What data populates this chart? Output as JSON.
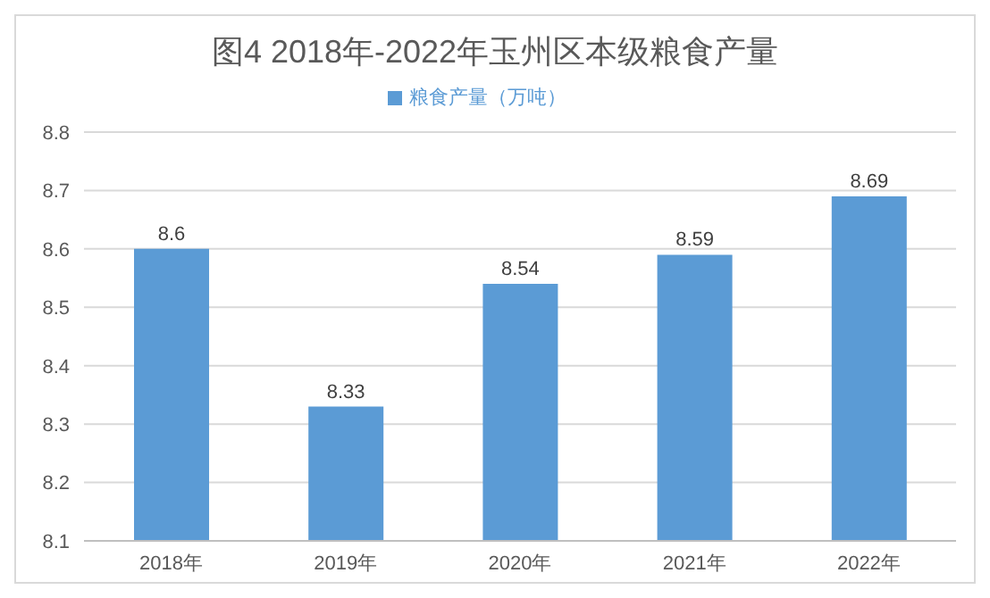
{
  "chart_data": {
    "type": "bar",
    "title": "图4 2018年-2022年玉州区本级粮食产量",
    "categories": [
      "2018年",
      "2019年",
      "2020年",
      "2021年",
      "2022年"
    ],
    "series": [
      {
        "name": "粮食产量（万吨）",
        "color": "#5b9bd5",
        "values": [
          8.6,
          8.33,
          8.54,
          8.59,
          8.69
        ]
      }
    ],
    "ylim": [
      8.1,
      8.8
    ],
    "yticks": [
      8.1,
      8.2,
      8.3,
      8.4,
      8.5,
      8.6,
      8.7,
      8.8
    ],
    "grid": "y",
    "legend": "top",
    "data_labels": true
  }
}
